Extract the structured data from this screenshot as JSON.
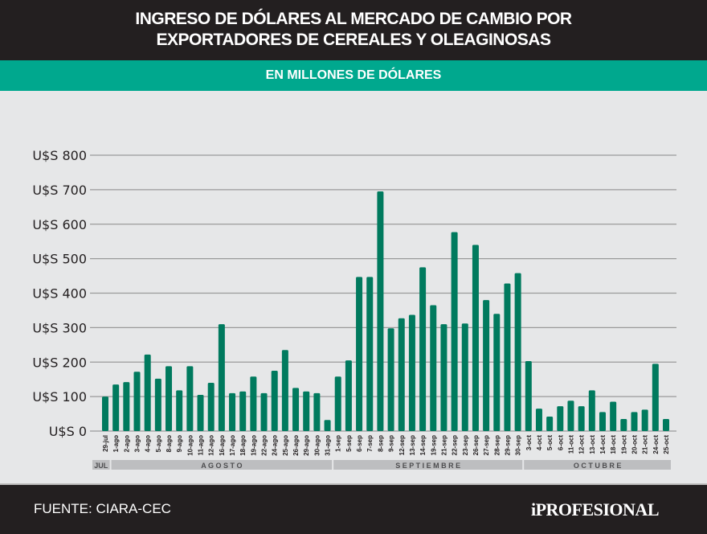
{
  "header": {
    "title_line1": "INGRESO DE DÓLARES AL MERCADO DE CAMBIO POR",
    "title_line2": "EXPORTADORES DE CEREALES Y OLEAGINOSAS",
    "subtitle": "EN MILLONES DE DÓLARES"
  },
  "footer": {
    "source": "FUENTE: CIARA-CEC",
    "logo": "iPROFESIONAL"
  },
  "colors": {
    "bar": "#007a5e",
    "header": "#231f20",
    "band": "#00a88e",
    "background": "#e6e7e8"
  },
  "chart_data": {
    "type": "bar",
    "ylim": [
      0,
      800
    ],
    "yticks": [
      0,
      100,
      200,
      300,
      400,
      500,
      600,
      700,
      800
    ],
    "ytick_labels": [
      "U$S 0",
      "U$S 100",
      "U$S 200",
      "U$S 300",
      "U$S 400",
      "U$S 500",
      "U$S 600",
      "U$S 700",
      "U$S 800"
    ],
    "grid": true,
    "categories": [
      "29-jul",
      "1-ago",
      "2-ago",
      "3-ago",
      "4-ago",
      "5-ago",
      "8-ago",
      "9-ago",
      "10-ago",
      "11-ago",
      "12-ago",
      "16-ago",
      "17-ago",
      "18-ago",
      "19-ago",
      "22-ago",
      "24-ago",
      "25-ago",
      "26-ago",
      "29-ago",
      "30-ago",
      "31-ago",
      "1-sep",
      "5-sep",
      "6-sep",
      "7-sep",
      "8-sep",
      "9-sep",
      "12-sep",
      "13-sep",
      "14-sep",
      "19-sep",
      "21-sep",
      "22-sep",
      "23-sep",
      "26-sep",
      "27-sep",
      "28-sep",
      "29-sep",
      "30-sep",
      "3-oct",
      "4-oct",
      "5-oct",
      "6-oct",
      "11-oct",
      "12-oct",
      "13-oct",
      "14-oct",
      "18-oct",
      "19-oct",
      "20-oct",
      "21-oct",
      "24-oct",
      "25-oct"
    ],
    "values": [
      100,
      135,
      142,
      172,
      222,
      152,
      188,
      118,
      188,
      105,
      140,
      310,
      110,
      115,
      158,
      110,
      175,
      235,
      125,
      115,
      110,
      32,
      158,
      205,
      447,
      447,
      695,
      298,
      327,
      337,
      475,
      365,
      310,
      577,
      312,
      540,
      380,
      340,
      428,
      458,
      203,
      65,
      42,
      72,
      88,
      72,
      118,
      55,
      85,
      35,
      55,
      62,
      195,
      35
    ],
    "months": [
      {
        "label": "JUL",
        "start": 0,
        "end": 0
      },
      {
        "label": "A G O S T O",
        "start": 1,
        "end": 21
      },
      {
        "label": "S E P T I E M B R E",
        "start": 22,
        "end": 39
      },
      {
        "label": "O C T U B R E",
        "start": 40,
        "end": 53
      }
    ]
  }
}
